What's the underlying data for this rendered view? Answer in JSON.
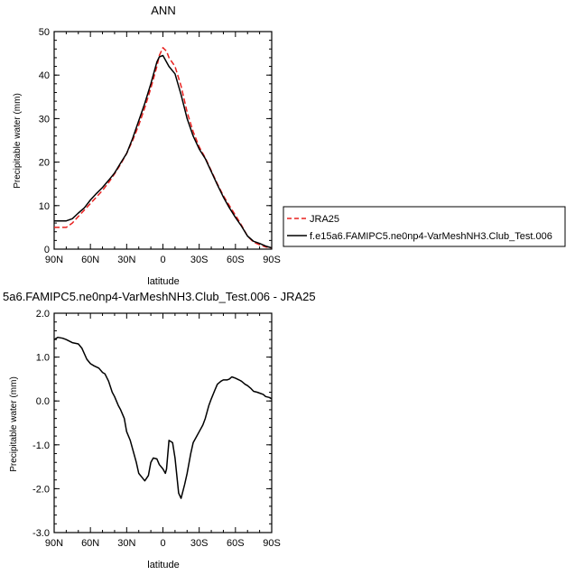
{
  "chart_data": [
    {
      "type": "line",
      "title": "ANN",
      "xlabel": "latitude",
      "ylabel": "Precipitable water (mm)",
      "x_tick_labels": [
        "90N",
        "60N",
        "30N",
        "0",
        "30S",
        "60S",
        "90S"
      ],
      "x_ticks": [
        90,
        60,
        30,
        0,
        -30,
        -60,
        -90
      ],
      "y_ticks": [
        0,
        10,
        20,
        30,
        40,
        50
      ],
      "y_tick_labels": [
        "0",
        "10",
        "20",
        "30",
        "40",
        "50"
      ],
      "xlim": [
        90,
        -90
      ],
      "ylim": [
        0,
        50
      ],
      "legend_position": "right",
      "series": [
        {
          "name": "JRA25",
          "color": "#e8211f",
          "dash": "dashed",
          "x": [
            90,
            80,
            75,
            70,
            65,
            60,
            55,
            50,
            45,
            40,
            35,
            30,
            25,
            20,
            15,
            10,
            5,
            3,
            0,
            -3,
            -5,
            -10,
            -15,
            -20,
            -25,
            -30,
            -35,
            -40,
            -45,
            -50,
            -55,
            -60,
            -65,
            -70,
            -75,
            -80,
            -85,
            -90
          ],
          "y": [
            5.0,
            5.0,
            6.0,
            7.5,
            9.0,
            10.5,
            12.0,
            13.5,
            15.3,
            17.3,
            19.5,
            22.0,
            25.0,
            28.5,
            32.5,
            37.0,
            42.0,
            44.5,
            46.3,
            45.5,
            44.0,
            42.0,
            37.5,
            31.5,
            27.0,
            23.5,
            21.0,
            18.0,
            15.0,
            12.3,
            10.0,
            7.8,
            5.5,
            3.0,
            1.6,
            1.0,
            0.5,
            0.3
          ]
        },
        {
          "name": "f.e15a6.FAMIPC5.ne0np4-VarMeshNH3.Club_Test.006",
          "color": "#000000",
          "dash": "solid",
          "x": [
            90,
            80,
            75,
            70,
            65,
            60,
            55,
            50,
            45,
            40,
            35,
            30,
            25,
            20,
            15,
            10,
            5,
            3,
            0,
            -3,
            -5,
            -10,
            -15,
            -20,
            -25,
            -30,
            -35,
            -40,
            -45,
            -50,
            -55,
            -60,
            -65,
            -70,
            -75,
            -80,
            -85,
            -90
          ],
          "y": [
            6.5,
            6.5,
            7.0,
            8.3,
            9.5,
            11.3,
            12.8,
            14.2,
            15.8,
            17.5,
            19.8,
            22.0,
            25.5,
            29.5,
            33.5,
            38.0,
            43.0,
            44.2,
            44.5,
            43.0,
            42.0,
            40.3,
            35.5,
            30.0,
            26.0,
            23.0,
            20.8,
            17.8,
            14.8,
            12.0,
            9.5,
            7.3,
            5.3,
            3.0,
            1.8,
            1.3,
            0.7,
            0.3
          ]
        }
      ]
    },
    {
      "type": "line",
      "title": "5a6.FAMIPC5.ne0np4-VarMeshNH3.Club_Test.006 - JRA25",
      "xlabel": "latitude",
      "ylabel": "Precipitable water (mm)",
      "x_tick_labels": [
        "90N",
        "60N",
        "30N",
        "0",
        "30S",
        "60S",
        "90S"
      ],
      "x_ticks": [
        90,
        60,
        30,
        0,
        -30,
        -60,
        -90
      ],
      "y_ticks": [
        -3,
        -2,
        -1,
        0,
        1,
        2
      ],
      "y_tick_labels": [
        "-3.0",
        "-2.0",
        "-1.0",
        "0.0",
        "1.0",
        "2.0"
      ],
      "xlim": [
        90,
        -90
      ],
      "ylim": [
        -3,
        2
      ],
      "series": [
        {
          "name": "",
          "color": "#000000",
          "dash": "solid",
          "x": [
            90,
            87,
            83,
            80,
            75,
            70,
            67,
            63,
            60,
            57,
            53,
            50,
            48,
            45,
            42,
            40,
            37,
            35,
            32,
            30,
            27,
            25,
            22,
            20,
            17,
            15,
            12,
            10,
            8,
            5,
            3,
            0,
            -2,
            -3,
            -5,
            -8,
            -10,
            -13,
            -15,
            -18,
            -20,
            -23,
            -25,
            -28,
            -30,
            -33,
            -35,
            -38,
            -40,
            -43,
            -45,
            -48,
            -50,
            -53,
            -55,
            -57,
            -60,
            -63,
            -65,
            -68,
            -70,
            -73,
            -75,
            -78,
            -80,
            -83,
            -85,
            -88,
            -90
          ],
          "y": [
            1.4,
            1.45,
            1.43,
            1.4,
            1.33,
            1.3,
            1.2,
            0.95,
            0.85,
            0.8,
            0.75,
            0.65,
            0.62,
            0.45,
            0.2,
            0.1,
            -0.1,
            -0.2,
            -0.4,
            -0.7,
            -0.9,
            -1.1,
            -1.4,
            -1.65,
            -1.75,
            -1.82,
            -1.7,
            -1.4,
            -1.3,
            -1.32,
            -1.45,
            -1.55,
            -1.65,
            -1.55,
            -0.9,
            -0.95,
            -1.3,
            -2.1,
            -2.22,
            -1.9,
            -1.65,
            -1.2,
            -0.95,
            -0.8,
            -0.7,
            -0.55,
            -0.4,
            -0.1,
            0.05,
            0.25,
            0.38,
            0.45,
            0.48,
            0.48,
            0.5,
            0.55,
            0.52,
            0.48,
            0.45,
            0.38,
            0.35,
            0.28,
            0.22,
            0.2,
            0.18,
            0.15,
            0.1,
            0.08,
            0.05
          ]
        }
      ]
    }
  ]
}
